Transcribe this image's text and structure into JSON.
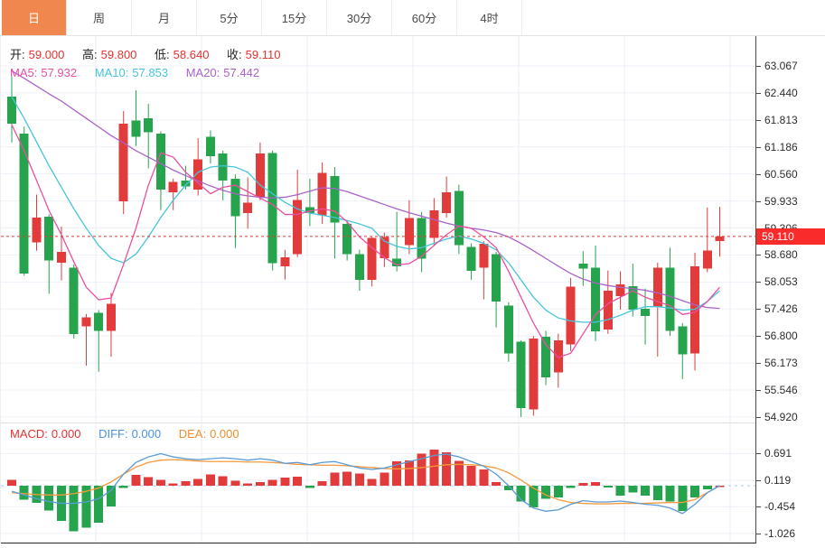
{
  "toolbar": {
    "tabs": [
      {
        "label": "日",
        "active": true
      },
      {
        "label": "周",
        "active": false
      },
      {
        "label": "月",
        "active": false
      },
      {
        "label": "5分",
        "active": false
      },
      {
        "label": "15分",
        "active": false
      },
      {
        "label": "30分",
        "active": false
      },
      {
        "label": "60分",
        "active": false
      },
      {
        "label": "4时",
        "active": false
      }
    ]
  },
  "readout": {
    "open_label": "开:",
    "open": "59.000",
    "high_label": "高:",
    "high": "59.800",
    "low_label": "低:",
    "low": "58.640",
    "close_label": "收:",
    "close": "59.110"
  },
  "ma_readout": {
    "ma5_label": "MA5:",
    "ma5": "57.932",
    "ma10_label": "MA10:",
    "ma10": "57.853",
    "ma20_label": "MA20:",
    "ma20": "57.442"
  },
  "macd_readout": {
    "macd_label": "MACD:",
    "macd": "0.000",
    "diff_label": "DIFF:",
    "diff": "0.000",
    "dea_label": "DEA:",
    "dea": "0.000"
  },
  "price_axis": {
    "labels": [
      "63.067",
      "62.440",
      "61.813",
      "61.186",
      "60.560",
      "59.933",
      "59.306",
      "58.680",
      "58.053",
      "57.426",
      "56.800",
      "56.173",
      "55.546",
      "54.920"
    ]
  },
  "macd_axis": {
    "labels": [
      "0.691",
      "0.119",
      "-0.454",
      "-1.026"
    ]
  },
  "last_price_tag": "59.110",
  "colors": {
    "up": "#e23b3b",
    "down": "#26a34d",
    "ma5": "#ec4fa0",
    "ma10": "#45c5da",
    "ma20": "#a963c8",
    "diff": "#5b9bd5",
    "dea": "#f59a3c",
    "macd_value": "#e8312f",
    "diff_value": "#4a90e2",
    "dea_value": "#f08c2e",
    "tag_bg": "#f92b2b",
    "last_line": "#f53333",
    "active_tab": "#f0874f",
    "grid": "#edf1f7",
    "vgrid": "#e9eef5",
    "zero_dash": "#aacdee"
  },
  "chart_data": {
    "type": "candlestick",
    "period_selected": "日",
    "note": "candles are [open, high, low, close]; red=up green=down",
    "candles": [
      [
        62.36,
        62.82,
        61.29,
        61.73
      ],
      [
        61.5,
        61.66,
        58.2,
        58.25
      ],
      [
        58.97,
        60.08,
        58.78,
        59.55
      ],
      [
        59.57,
        59.62,
        57.78,
        58.55
      ],
      [
        58.5,
        59.34,
        58.09,
        58.75
      ],
      [
        58.38,
        58.46,
        56.74,
        56.85
      ],
      [
        57.02,
        57.31,
        56.11,
        57.23
      ],
      [
        57.34,
        57.4,
        55.97,
        56.92
      ],
      [
        56.92,
        57.8,
        56.32,
        57.55
      ],
      [
        59.92,
        62.02,
        59.63,
        61.73
      ],
      [
        61.8,
        62.5,
        61.21,
        61.42
      ],
      [
        61.85,
        62.19,
        60.69,
        61.53
      ],
      [
        61.5,
        61.55,
        59.72,
        60.2
      ],
      [
        60.13,
        60.45,
        59.72,
        60.38
      ],
      [
        60.41,
        60.75,
        60.2,
        60.27
      ],
      [
        60.2,
        61.39,
        60.06,
        60.9
      ],
      [
        61.42,
        61.57,
        60.8,
        60.97
      ],
      [
        61.04,
        61.1,
        59.95,
        60.41
      ],
      [
        60.45,
        60.55,
        58.84,
        59.58
      ],
      [
        59.65,
        60.48,
        59.29,
        59.89
      ],
      [
        60.03,
        61.29,
        59.95,
        61.04
      ],
      [
        61.05,
        61.1,
        58.32,
        58.49
      ],
      [
        58.42,
        58.8,
        58.11,
        58.63
      ],
      [
        58.7,
        60.66,
        58.63,
        59.96
      ],
      [
        59.79,
        60.45,
        59.35,
        59.65
      ],
      [
        59.6,
        60.83,
        59.4,
        60.58
      ],
      [
        60.51,
        60.72,
        58.6,
        59.43
      ],
      [
        59.4,
        59.48,
        58.55,
        58.7
      ],
      [
        58.7,
        58.8,
        57.85,
        58.1
      ],
      [
        58.1,
        59.1,
        57.95,
        59.08
      ],
      [
        58.6,
        59.2,
        58.4,
        59.1
      ],
      [
        58.59,
        59.68,
        58.3,
        58.42
      ],
      [
        58.91,
        59.95,
        58.7,
        59.54
      ],
      [
        59.54,
        59.68,
        58.28,
        58.59
      ],
      [
        59.08,
        60.0,
        58.9,
        59.72
      ],
      [
        59.65,
        60.5,
        59.55,
        60.13
      ],
      [
        60.17,
        60.31,
        58.7,
        58.91
      ],
      [
        58.87,
        58.95,
        58.1,
        58.31
      ],
      [
        58.38,
        59.0,
        57.65,
        58.94
      ],
      [
        58.7,
        58.75,
        57.0,
        57.6
      ],
      [
        57.51,
        57.58,
        56.2,
        56.39
      ],
      [
        56.67,
        56.7,
        54.92,
        55.13
      ],
      [
        55.1,
        56.8,
        54.95,
        56.74
      ],
      [
        56.78,
        56.92,
        55.66,
        55.84
      ],
      [
        55.95,
        56.85,
        55.6,
        56.7
      ],
      [
        56.6,
        58.15,
        56.45,
        57.94
      ],
      [
        58.48,
        58.77,
        57.96,
        58.36
      ],
      [
        58.38,
        58.9,
        56.68,
        56.91
      ],
      [
        56.95,
        58.32,
        56.85,
        57.85
      ],
      [
        57.73,
        58.3,
        57.41,
        58.0
      ],
      [
        57.96,
        58.48,
        57.25,
        57.41
      ],
      [
        57.43,
        57.9,
        56.6,
        57.26
      ],
      [
        57.48,
        58.5,
        56.32,
        58.38
      ],
      [
        58.38,
        58.85,
        56.8,
        56.92
      ],
      [
        57.02,
        57.1,
        55.8,
        56.37
      ],
      [
        56.39,
        58.73,
        56.0,
        58.42
      ],
      [
        58.36,
        59.78,
        58.28,
        58.78
      ],
      [
        59.0,
        59.8,
        58.64,
        59.11
      ]
    ],
    "ma5": [
      61.7,
      61.1,
      60.41,
      59.71,
      59.15,
      58.52,
      57.93,
      57.64,
      57.68,
      58.46,
      59.3,
      60.3,
      61.05,
      60.95,
      60.6,
      60.35,
      60.1,
      60.25,
      60.3,
      60.15,
      60.0,
      59.85,
      59.62,
      59.62,
      59.7,
      59.75,
      59.7,
      59.45,
      59.1,
      58.85,
      58.62,
      58.45,
      58.48,
      58.65,
      58.9,
      59.15,
      59.35,
      59.3,
      59.1,
      58.85,
      58.3,
      57.7,
      57.1,
      56.6,
      56.3,
      56.4,
      56.85,
      57.3,
      57.55,
      57.7,
      57.85,
      57.7,
      57.6,
      57.5,
      57.3,
      57.35,
      57.6,
      57.93
    ],
    "ma10": [
      62.35,
      61.85,
      61.3,
      60.75,
      60.25,
      59.75,
      59.3,
      58.9,
      58.6,
      58.5,
      58.7,
      59.1,
      59.55,
      59.95,
      60.3,
      60.6,
      60.72,
      60.75,
      60.72,
      60.6,
      60.3,
      60.1,
      59.9,
      59.75,
      59.65,
      59.6,
      59.55,
      59.48,
      59.4,
      59.3,
      59.0,
      58.88,
      58.82,
      58.85,
      58.95,
      59.05,
      59.12,
      59.05,
      58.95,
      58.8,
      58.5,
      58.1,
      57.7,
      57.4,
      57.22,
      57.15,
      57.12,
      57.12,
      57.18,
      57.28,
      57.4,
      57.48,
      57.48,
      57.45,
      57.4,
      57.42,
      57.6,
      57.85
    ],
    "ma20": [
      62.95,
      62.78,
      62.6,
      62.42,
      62.25,
      62.05,
      61.85,
      61.65,
      61.45,
      61.28,
      61.1,
      60.95,
      60.8,
      60.65,
      60.52,
      60.4,
      60.28,
      60.18,
      60.1,
      60.05,
      60.02,
      60.0,
      60.02,
      60.08,
      60.16,
      60.24,
      60.22,
      60.15,
      60.05,
      59.95,
      59.85,
      59.75,
      59.66,
      59.58,
      59.5,
      59.42,
      59.35,
      59.3,
      59.26,
      59.2,
      59.1,
      58.95,
      58.78,
      58.6,
      58.42,
      58.25,
      58.12,
      58.03,
      57.97,
      57.93,
      57.9,
      57.86,
      57.8,
      57.72,
      57.62,
      57.52,
      57.46,
      57.44
    ],
    "last_close_line": 59.11,
    "price_ticks": [
      63.067,
      62.44,
      61.813,
      61.186,
      60.56,
      59.933,
      59.306,
      58.68,
      58.053,
      57.426,
      56.8,
      56.173,
      55.546,
      54.92
    ],
    "macd": {
      "ticks": [
        0.691,
        0.119,
        -0.454,
        -1.026
      ],
      "histogram": [
        0.13,
        -0.3,
        -0.37,
        -0.53,
        -0.76,
        -0.98,
        -0.9,
        -0.8,
        -0.45,
        -0.05,
        0.23,
        0.18,
        0.13,
        0.05,
        0.1,
        0.15,
        0.24,
        0.2,
        0.11,
        0.05,
        0.08,
        0.13,
        0.17,
        0.19,
        -0.05,
        0.1,
        0.28,
        0.3,
        0.26,
        0.15,
        0.28,
        0.52,
        0.54,
        0.69,
        0.78,
        0.72,
        0.53,
        0.43,
        0.35,
        0.08,
        -0.1,
        -0.34,
        -0.47,
        -0.28,
        -0.25,
        -0.05,
        0.06,
        0.08,
        -0.04,
        -0.21,
        -0.15,
        -0.21,
        -0.31,
        -0.34,
        -0.54,
        -0.25,
        -0.08,
        0.0
      ],
      "diff": [
        -0.12,
        -0.2,
        -0.28,
        -0.34,
        -0.38,
        -0.38,
        -0.35,
        -0.28,
        -0.1,
        0.25,
        0.5,
        0.62,
        0.69,
        0.62,
        0.58,
        0.56,
        0.58,
        0.6,
        0.58,
        0.55,
        0.58,
        0.55,
        0.48,
        0.5,
        0.45,
        0.5,
        0.52,
        0.45,
        0.38,
        0.35,
        0.38,
        0.45,
        0.52,
        0.58,
        0.65,
        0.68,
        0.62,
        0.52,
        0.42,
        0.25,
        0.0,
        -0.3,
        -0.48,
        -0.55,
        -0.52,
        -0.4,
        -0.32,
        -0.35,
        -0.35,
        -0.33,
        -0.36,
        -0.4,
        -0.42,
        -0.48,
        -0.6,
        -0.4,
        -0.15,
        0.0
      ],
      "dea": [
        -0.15,
        -0.17,
        -0.19,
        -0.2,
        -0.2,
        -0.17,
        -0.12,
        -0.05,
        0.08,
        0.25,
        0.4,
        0.5,
        0.55,
        0.56,
        0.55,
        0.53,
        0.52,
        0.52,
        0.52,
        0.51,
        0.51,
        0.5,
        0.48,
        0.46,
        0.45,
        0.44,
        0.44,
        0.43,
        0.41,
        0.39,
        0.37,
        0.36,
        0.37,
        0.39,
        0.42,
        0.45,
        0.46,
        0.45,
        0.43,
        0.38,
        0.28,
        0.12,
        -0.05,
        -0.2,
        -0.3,
        -0.36,
        -0.38,
        -0.39,
        -0.39,
        -0.38,
        -0.38,
        -0.38,
        -0.37,
        -0.36,
        -0.36,
        -0.3,
        -0.15,
        0.0
      ]
    }
  }
}
